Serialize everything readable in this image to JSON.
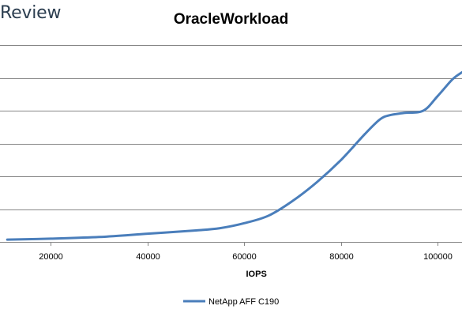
{
  "watermark": {
    "text": "Review"
  },
  "chart_data": {
    "type": "line",
    "title": "OracleWorkload",
    "xlabel": "IOPS",
    "ylabel": "",
    "xlim": [
      9500,
      105000
    ],
    "ylim": [
      0,
      6
    ],
    "xticks": [
      20000,
      40000,
      60000,
      80000,
      100000
    ],
    "tick_labels": [
      "20000",
      "40000",
      "60000",
      "80000",
      "100000"
    ],
    "y_gridlines": [
      1,
      2,
      3,
      4,
      5,
      6
    ],
    "grid": true,
    "legend_position": "bottom",
    "series": [
      {
        "name": "NetApp AFF C190",
        "color": "#4a7ebb",
        "x": [
          11000,
          20000,
          30000,
          40000,
          50000,
          55000,
          60000,
          65000,
          70000,
          75000,
          80000,
          85000,
          88000,
          90000,
          93000,
          97000,
          100000,
          103000,
          105000
        ],
        "y": [
          0.07,
          0.1,
          0.15,
          0.25,
          0.35,
          0.42,
          0.57,
          0.8,
          1.25,
          1.82,
          2.5,
          3.3,
          3.73,
          3.86,
          3.93,
          4.0,
          4.45,
          4.95,
          5.17
        ]
      }
    ]
  }
}
